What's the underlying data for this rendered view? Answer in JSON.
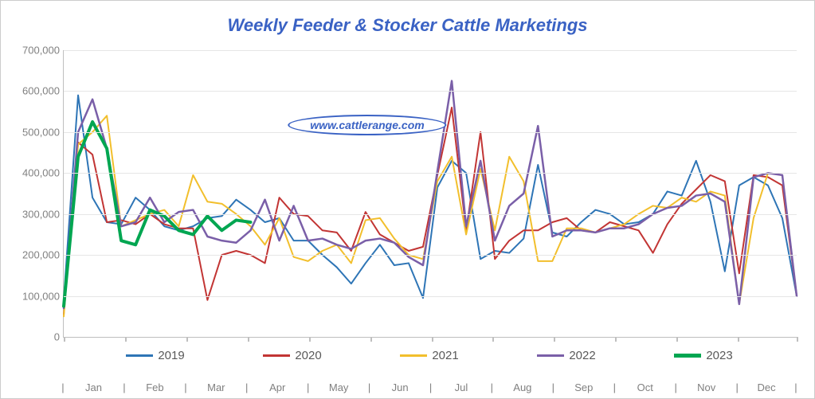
{
  "chart": {
    "type": "line",
    "title": "Weekly Feeder & Stocker Cattle Marketings",
    "title_fontsize": 22,
    "title_color": "#3a62c4",
    "background_color": "#ffffff",
    "grid_color": "#e6e6e6",
    "axis_color": "#bfbfbf",
    "tick_label_color": "#808080",
    "label_fontsize": 13,
    "watermark": "www.cattlerange.com",
    "ylim": [
      0,
      700000
    ],
    "ytick_step": 100000,
    "y_ticks": [
      "0",
      "100,000",
      "200,000",
      "300,000",
      "400,000",
      "500,000",
      "600,000",
      "700,000"
    ],
    "weeks_per_year": 52,
    "month_labels": [
      "Jan",
      "Feb",
      "Mar",
      "Apr",
      "May",
      "Jun",
      "Jul",
      "Aug",
      "Sep",
      "Oct",
      "Nov",
      "Dec"
    ],
    "month_boundaries_weeks": [
      0,
      4.35,
      8.7,
      13.04,
      17.39,
      21.74,
      26.09,
      30.43,
      34.78,
      39.13,
      43.48,
      47.83,
      52
    ],
    "series": [
      {
        "name": "2019",
        "color": "#2e75b6",
        "line_width": 2,
        "values": [
          90000,
          590000,
          340000,
          280000,
          275000,
          340000,
          310000,
          270000,
          260000,
          270000,
          290000,
          295000,
          335000,
          310000,
          280000,
          290000,
          235000,
          235000,
          200000,
          170000,
          130000,
          180000,
          225000,
          175000,
          180000,
          95000,
          365000,
          430000,
          400000,
          190000,
          210000,
          205000,
          240000,
          420000,
          255000,
          245000,
          280000,
          310000,
          300000,
          275000,
          280000,
          300000,
          355000,
          345000,
          430000,
          330000,
          160000,
          370000,
          390000,
          370000,
          290000,
          100000
        ]
      },
      {
        "name": "2020",
        "color": "#c23534",
        "line_width": 2,
        "values": [
          55000,
          475000,
          445000,
          280000,
          285000,
          275000,
          300000,
          275000,
          265000,
          265000,
          90000,
          200000,
          210000,
          200000,
          180000,
          340000,
          300000,
          295000,
          260000,
          255000,
          210000,
          305000,
          250000,
          230000,
          210000,
          220000,
          395000,
          560000,
          260000,
          500000,
          190000,
          235000,
          260000,
          260000,
          280000,
          290000,
          260000,
          255000,
          280000,
          270000,
          260000,
          205000,
          275000,
          325000,
          360000,
          395000,
          380000,
          155000,
          395000,
          390000,
          370000,
          100000
        ]
      },
      {
        "name": "2021",
        "color": "#f2bf2c",
        "line_width": 2,
        "values": [
          50000,
          470000,
          500000,
          540000,
          270000,
          285000,
          300000,
          310000,
          270000,
          395000,
          330000,
          325000,
          300000,
          270000,
          225000,
          290000,
          195000,
          185000,
          210000,
          225000,
          180000,
          285000,
          290000,
          240000,
          200000,
          190000,
          380000,
          440000,
          250000,
          410000,
          260000,
          440000,
          380000,
          185000,
          185000,
          265000,
          265000,
          255000,
          265000,
          275000,
          300000,
          320000,
          315000,
          340000,
          330000,
          355000,
          345000,
          80000,
          290000,
          400000,
          395000,
          100000
        ]
      },
      {
        "name": "2022",
        "color": "#7a5fa8",
        "line_width": 2.5,
        "values": [
          70000,
          500000,
          580000,
          460000,
          270000,
          280000,
          340000,
          280000,
          305000,
          310000,
          245000,
          235000,
          230000,
          260000,
          335000,
          235000,
          320000,
          235000,
          240000,
          225000,
          215000,
          235000,
          240000,
          230000,
          195000,
          175000,
          405000,
          625000,
          270000,
          430000,
          235000,
          320000,
          350000,
          515000,
          245000,
          260000,
          260000,
          255000,
          265000,
          265000,
          275000,
          300000,
          315000,
          320000,
          345000,
          350000,
          330000,
          80000,
          390000,
          400000,
          395000,
          100000
        ]
      },
      {
        "name": "2023",
        "color": "#00a651",
        "line_width": 4,
        "values": [
          75000,
          440000,
          525000,
          460000,
          235000,
          225000,
          310000,
          295000,
          260000,
          250000,
          295000,
          260000,
          285000,
          280000
        ]
      }
    ]
  }
}
